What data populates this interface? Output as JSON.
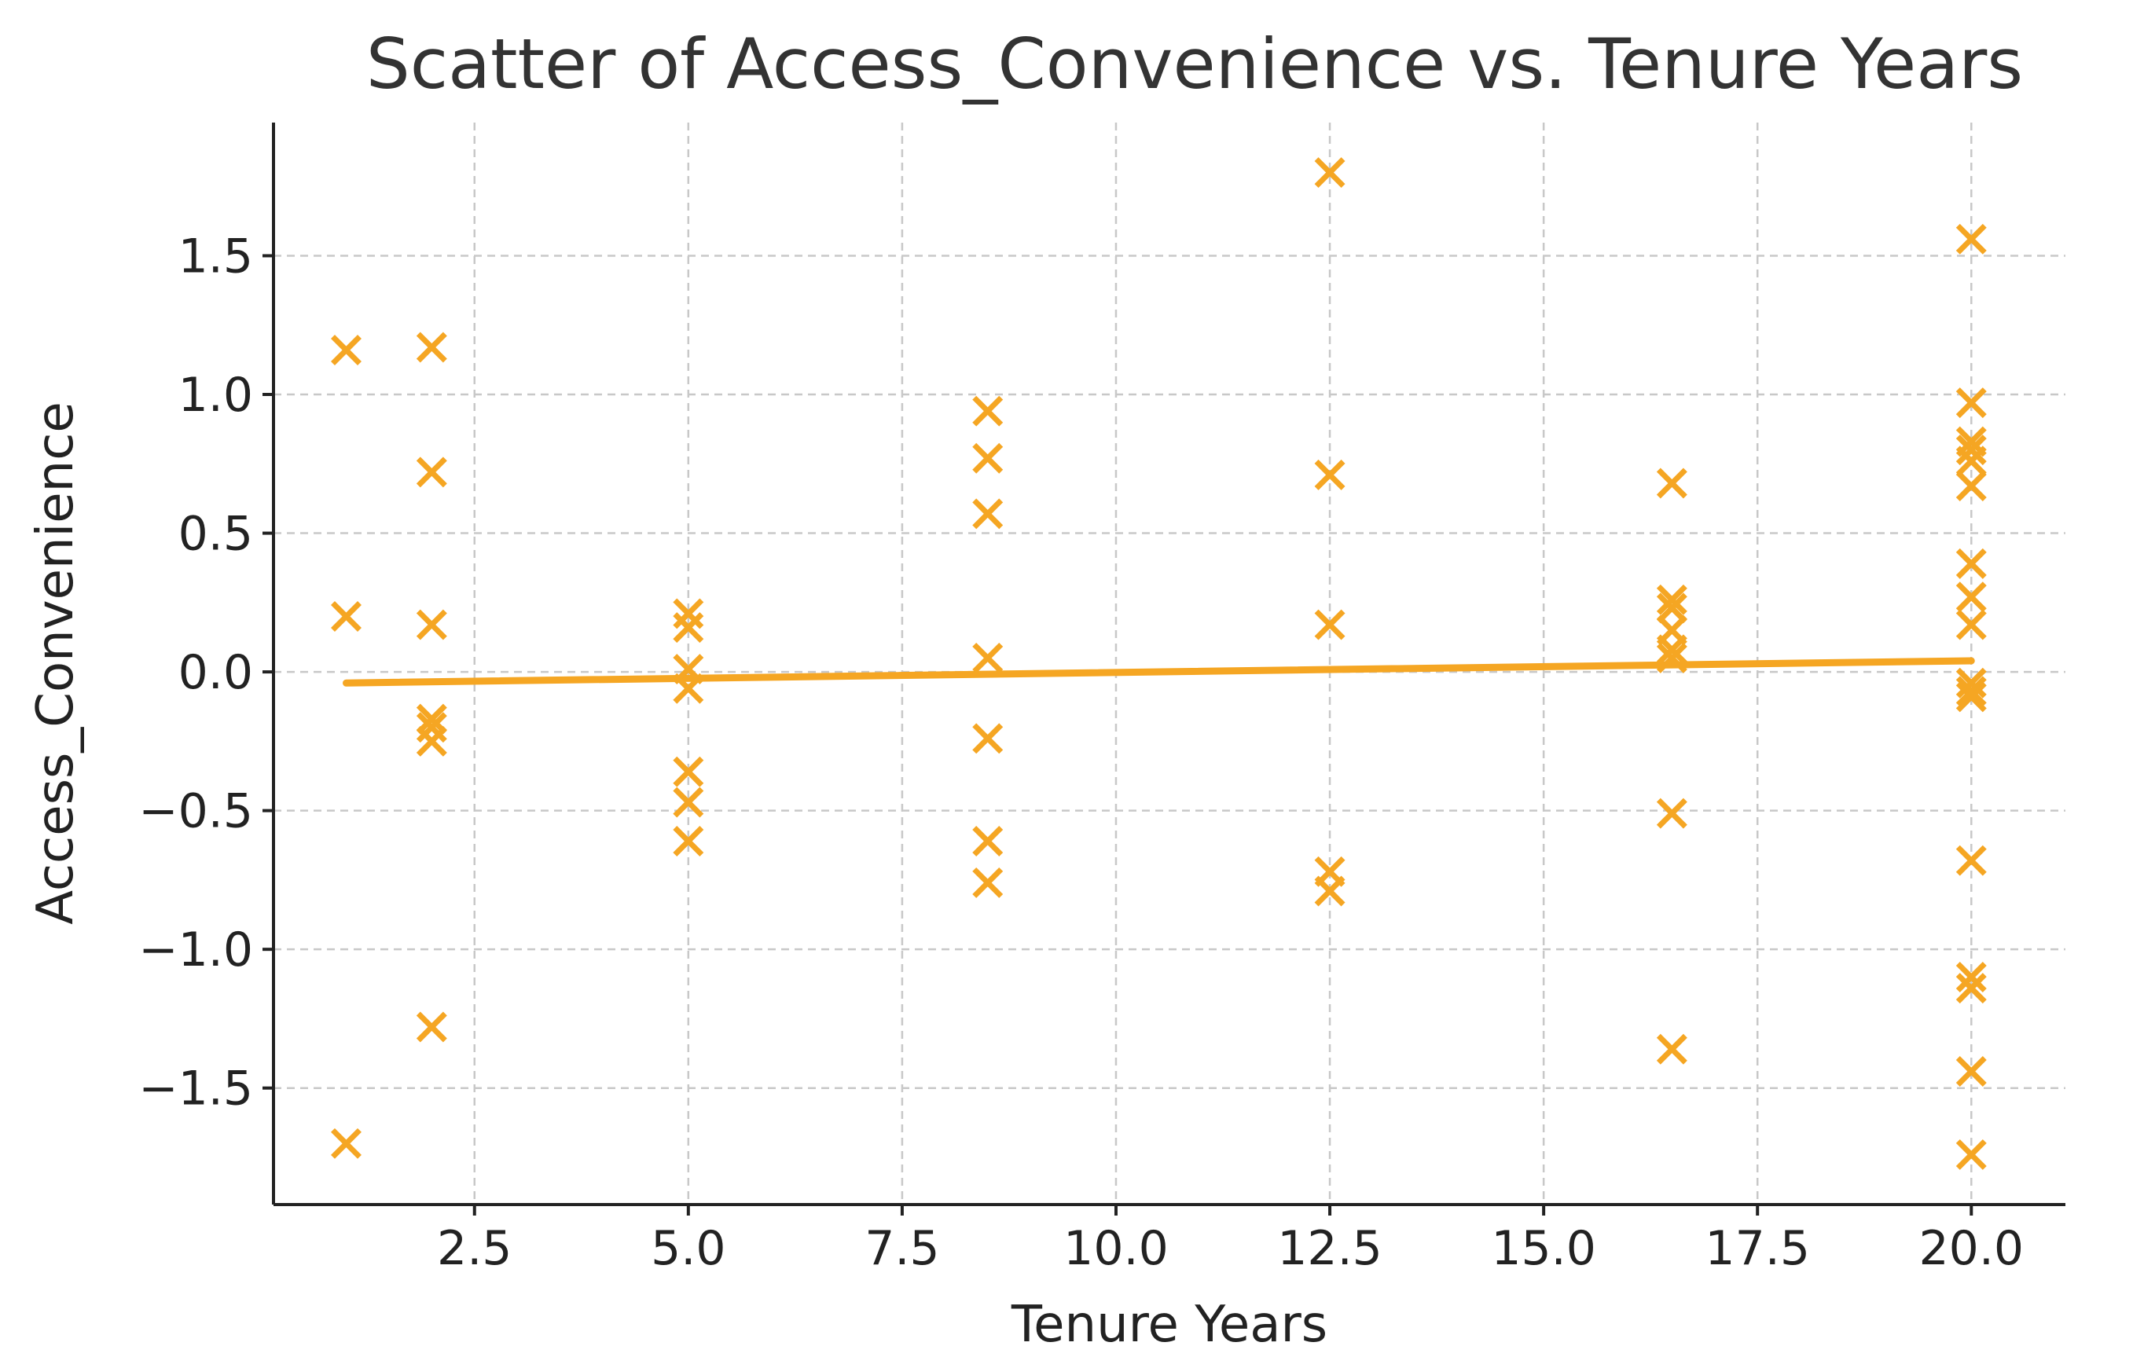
{
  "chart_data": {
    "type": "scatter",
    "title": "Scatter of Access_Convenience vs. Tenure Years",
    "xlabel": "Tenure Years",
    "ylabel": "Access_Convenience",
    "xlim": [
      0.15,
      21.1
    ],
    "ylim": [
      -1.92,
      1.98
    ],
    "xticks": [
      2.5,
      5.0,
      7.5,
      10.0,
      12.5,
      15.0,
      17.5,
      20.0
    ],
    "xtick_labels": [
      "2.5",
      "5.0",
      "7.5",
      "10.0",
      "12.5",
      "15.0",
      "17.5",
      "20.0"
    ],
    "yticks": [
      -1.5,
      -1.0,
      -0.5,
      0.0,
      0.5,
      1.0,
      1.5
    ],
    "ytick_labels": [
      "−1.5",
      "−1.0",
      "−0.5",
      "0.0",
      "0.5",
      "1.0",
      "1.5"
    ],
    "grid": true,
    "marker": "x",
    "color": "#f5a623",
    "points": [
      {
        "x": 1,
        "y": 1.16
      },
      {
        "x": 1,
        "y": 0.2
      },
      {
        "x": 1,
        "y": -1.7
      },
      {
        "x": 2,
        "y": 1.17
      },
      {
        "x": 2,
        "y": 0.72
      },
      {
        "x": 2,
        "y": 0.17
      },
      {
        "x": 2,
        "y": -0.17
      },
      {
        "x": 2,
        "y": -0.2
      },
      {
        "x": 2,
        "y": -0.25
      },
      {
        "x": 2,
        "y": -1.28
      },
      {
        "x": 5,
        "y": 0.21
      },
      {
        "x": 5,
        "y": 0.16
      },
      {
        "x": 5,
        "y": 0.01
      },
      {
        "x": 5,
        "y": -0.06
      },
      {
        "x": 5,
        "y": -0.36
      },
      {
        "x": 5,
        "y": -0.47
      },
      {
        "x": 5,
        "y": -0.61
      },
      {
        "x": 8.5,
        "y": 0.94
      },
      {
        "x": 8.5,
        "y": 0.77
      },
      {
        "x": 8.5,
        "y": 0.57
      },
      {
        "x": 8.5,
        "y": 0.05
      },
      {
        "x": 8.5,
        "y": -0.24
      },
      {
        "x": 8.5,
        "y": -0.61
      },
      {
        "x": 8.5,
        "y": -0.76
      },
      {
        "x": 12.5,
        "y": 1.8
      },
      {
        "x": 12.5,
        "y": 0.71
      },
      {
        "x": 12.5,
        "y": 0.17
      },
      {
        "x": 12.5,
        "y": -0.72
      },
      {
        "x": 12.5,
        "y": -0.79
      },
      {
        "x": 16.5,
        "y": 0.68
      },
      {
        "x": 16.5,
        "y": 0.26
      },
      {
        "x": 16.5,
        "y": 0.23
      },
      {
        "x": 16.5,
        "y": 0.15
      },
      {
        "x": 16.5,
        "y": 0.08
      },
      {
        "x": 16.5,
        "y": 0.05
      },
      {
        "x": 16.5,
        "y": -0.51
      },
      {
        "x": 16.5,
        "y": -1.36
      },
      {
        "x": 20,
        "y": 1.56
      },
      {
        "x": 20,
        "y": 0.97
      },
      {
        "x": 20,
        "y": 0.83
      },
      {
        "x": 20,
        "y": 0.8
      },
      {
        "x": 20,
        "y": 0.76
      },
      {
        "x": 20,
        "y": 0.67
      },
      {
        "x": 20,
        "y": 0.39
      },
      {
        "x": 20,
        "y": 0.27
      },
      {
        "x": 20,
        "y": 0.17
      },
      {
        "x": 20,
        "y": -0.04
      },
      {
        "x": 20,
        "y": -0.07
      },
      {
        "x": 20,
        "y": -0.09
      },
      {
        "x": 20,
        "y": -0.68
      },
      {
        "x": 20,
        "y": -1.1
      },
      {
        "x": 20,
        "y": -1.14
      },
      {
        "x": 20,
        "y": -1.44
      },
      {
        "x": 20,
        "y": -1.74
      }
    ],
    "trend_line": {
      "x": [
        1,
        20
      ],
      "y": [
        -0.04,
        0.04
      ]
    }
  }
}
